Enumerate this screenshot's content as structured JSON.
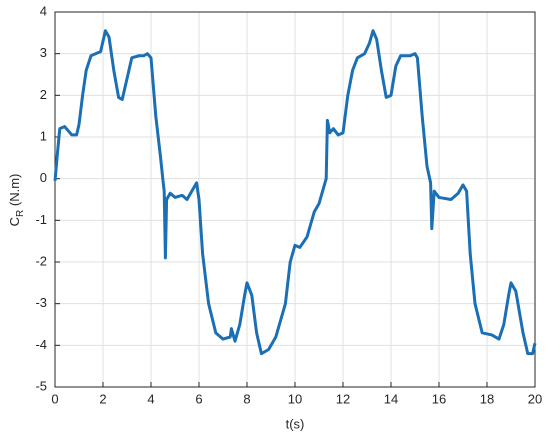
{
  "chart_data": {
    "type": "line",
    "xlabel": "t(s)",
    "ylabel": {
      "main": "C",
      "sub": "R",
      "rest": " (N.m)"
    },
    "xlim": [
      0,
      20
    ],
    "xticks": [
      0,
      2,
      4,
      6,
      8,
      10,
      12,
      14,
      16,
      18,
      20
    ],
    "ylim": [
      -5,
      4
    ],
    "yticks": [
      -5,
      -4,
      -3,
      -2,
      -1,
      0,
      1,
      2,
      3,
      4
    ],
    "grid": true,
    "x": [
      0,
      0.1,
      0.2,
      0.4,
      0.7,
      0.9,
      1.0,
      1.15,
      1.3,
      1.5,
      1.7,
      1.9,
      2.0,
      2.1,
      2.25,
      2.45,
      2.65,
      2.8,
      3.0,
      3.2,
      3.5,
      3.7,
      3.85,
      4.0,
      4.2,
      4.4,
      4.5,
      4.55,
      4.6,
      4.65,
      4.8,
      5.0,
      5.3,
      5.5,
      5.8,
      5.9,
      6.0,
      6.15,
      6.4,
      6.7,
      7.0,
      7.3,
      7.35,
      7.5,
      7.7,
      7.9,
      8.0,
      8.2,
      8.4,
      8.6,
      8.9,
      9.2,
      9.6,
      9.8,
      10.0,
      10.2,
      10.5,
      10.8,
      11.0,
      11.2,
      11.3,
      11.35,
      11.45,
      11.6,
      11.8,
      12.0,
      12.2,
      12.4,
      12.6,
      12.9,
      13.1,
      13.25,
      13.4,
      13.6,
      13.8,
      14.0,
      14.2,
      14.4,
      14.8,
      15.0,
      15.1,
      15.3,
      15.5,
      15.65,
      15.7,
      15.8,
      16.0,
      16.5,
      16.8,
      17.0,
      17.15,
      17.3,
      17.5,
      17.8,
      18.2,
      18.5,
      18.7,
      18.9,
      19.0,
      19.2,
      19.5,
      19.7,
      19.9,
      20.0
    ],
    "series": [
      {
        "color": "#1a6fb5",
        "values": [
          -0.05,
          0.6,
          1.2,
          1.25,
          1.05,
          1.05,
          1.3,
          2.0,
          2.6,
          2.95,
          3.0,
          3.05,
          3.3,
          3.55,
          3.4,
          2.6,
          1.95,
          1.9,
          2.4,
          2.9,
          2.95,
          2.95,
          3.0,
          2.9,
          1.5,
          0.5,
          -0.05,
          -0.3,
          -1.9,
          -0.5,
          -0.35,
          -0.45,
          -0.4,
          -0.5,
          -0.2,
          -0.1,
          -0.5,
          -1.8,
          -3.0,
          -3.7,
          -3.85,
          -3.8,
          -3.6,
          -3.9,
          -3.5,
          -2.8,
          -2.5,
          -2.8,
          -3.7,
          -4.2,
          -4.1,
          -3.8,
          -3.0,
          -2.0,
          -1.6,
          -1.65,
          -1.4,
          -0.8,
          -0.6,
          -0.2,
          0.0,
          1.4,
          1.1,
          1.2,
          1.05,
          1.1,
          2.0,
          2.6,
          2.9,
          3.0,
          3.25,
          3.55,
          3.35,
          2.6,
          1.95,
          2.0,
          2.7,
          2.95,
          2.95,
          3.0,
          2.9,
          1.5,
          0.3,
          -0.1,
          -1.2,
          -0.3,
          -0.45,
          -0.5,
          -0.35,
          -0.15,
          -0.3,
          -1.8,
          -3.0,
          -3.7,
          -3.75,
          -3.85,
          -3.5,
          -2.8,
          -2.5,
          -2.7,
          -3.7,
          -4.2,
          -4.2,
          -3.95
        ]
      }
    ]
  }
}
